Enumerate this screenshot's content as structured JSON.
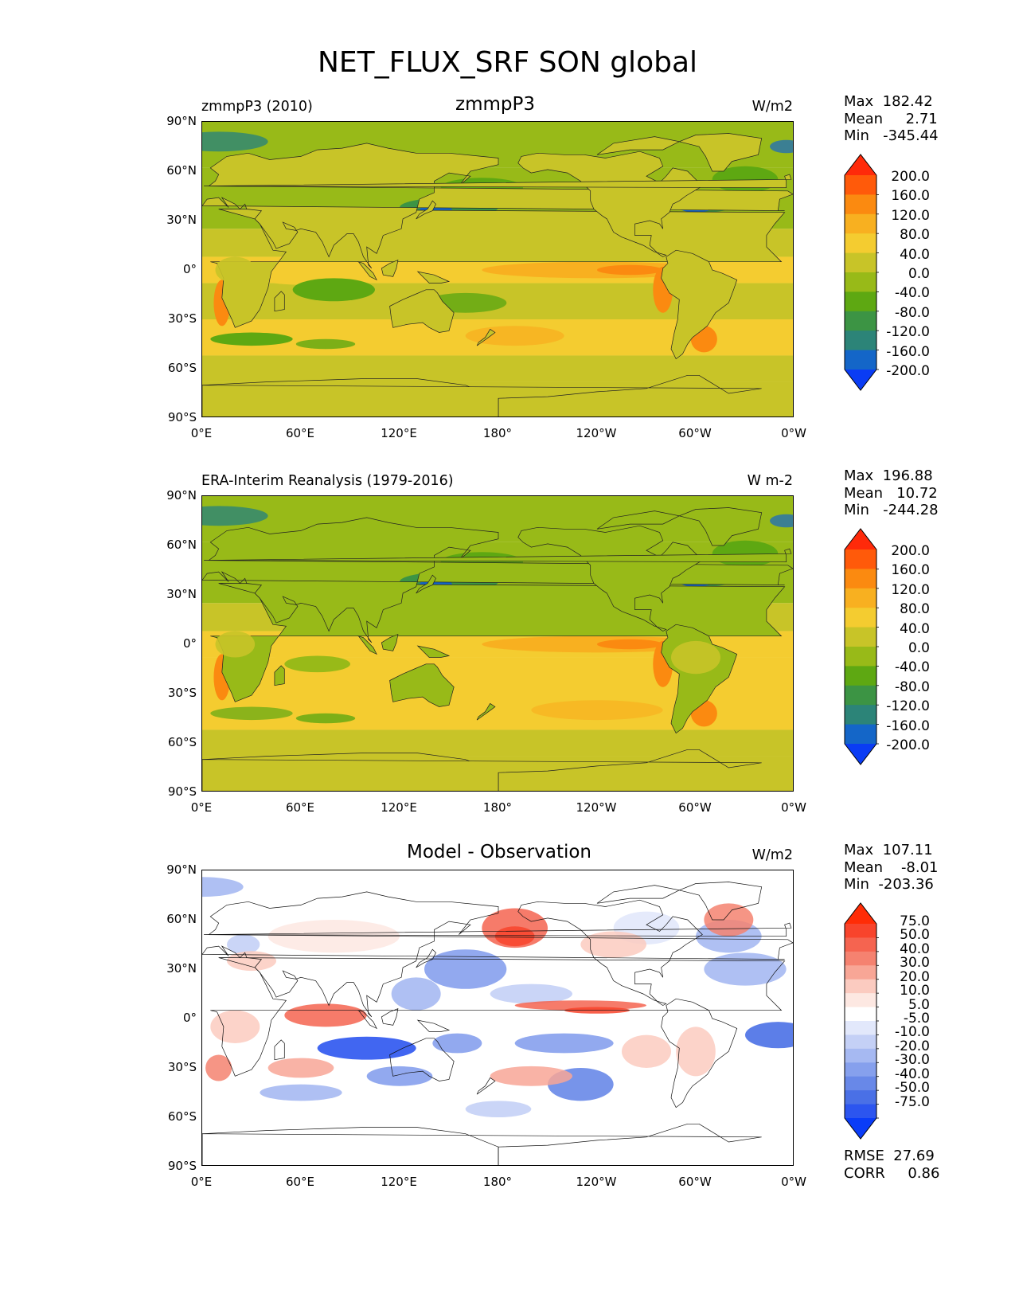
{
  "figure": {
    "title": "NET_FLUX_SRF SON global",
    "x_ticks": [
      "0°E",
      "60°E",
      "120°E",
      "180°",
      "120°W",
      "60°W",
      "0°W"
    ],
    "y_ticks": [
      "90°N",
      "60°N",
      "30°N",
      "0°",
      "30°S",
      "60°S",
      "90°S"
    ]
  },
  "panels": [
    {
      "left_title": "zmmpP3 (2010)",
      "center_title": "zmmpP3",
      "units": "W/m2",
      "stats": {
        "max_label": "Max",
        "max": "182.42",
        "mean_label": "Mean",
        "mean": "2.71",
        "min_label": "Min",
        "min": "-345.44"
      },
      "colorbar_labels": [
        "200.0",
        "160.0",
        "120.0",
        "80.0",
        "40.0",
        "0.0",
        "-40.0",
        "-80.0",
        "-120.0",
        "-160.0",
        "-200.0"
      ]
    },
    {
      "left_title": "ERA-Interim Reanalysis (1979-2016)",
      "center_title": "",
      "units": "W m-2",
      "stats": {
        "max_label": "Max",
        "max": "196.88",
        "mean_label": "Mean",
        "mean": "10.72",
        "min_label": "Min",
        "min": "-244.28"
      },
      "colorbar_labels": [
        "200.0",
        "160.0",
        "120.0",
        "80.0",
        "40.0",
        "0.0",
        "-40.0",
        "-80.0",
        "-120.0",
        "-160.0",
        "-200.0"
      ]
    },
    {
      "left_title": "",
      "center_title": "Model - Observation",
      "units": "W/m2",
      "stats": {
        "max_label": "Max",
        "max": "107.11",
        "mean_label": "Mean",
        "mean": "-8.01",
        "min_label": "Min",
        "min": "-203.36"
      },
      "colorbar_labels": [
        "75.0",
        "50.0",
        "40.0",
        "30.0",
        "20.0",
        "10.0",
        "5.0",
        "-5.0",
        "-10.0",
        "-20.0",
        "-30.0",
        "-40.0",
        "-50.0",
        "-75.0"
      ],
      "metrics": {
        "rmse_label": "RMSE",
        "rmse": "27.69",
        "corr_label": "CORR",
        "corr": "0.86"
      }
    }
  ],
  "colors": {
    "abs_scale": [
      "#ff2a0a",
      "#ff5a0a",
      "#fb8a10",
      "#f8b020",
      "#f4cc30",
      "#c8c428",
      "#98ba18",
      "#5ea812",
      "#3c9444",
      "#2c8478",
      "#1466c8",
      "#0a3cf4"
    ],
    "diff_scale": [
      "#ff2c06",
      "#f8442c",
      "#f56450",
      "#f58270",
      "#f8a696",
      "#fbcbc0",
      "#fde8e2",
      "#ffffff",
      "#e2e8fb",
      "#c4d0f6",
      "#a6b9f2",
      "#86a0ed",
      "#6888e8",
      "#4a70e6",
      "#2c55ef",
      "#0a3cf8"
    ]
  }
}
